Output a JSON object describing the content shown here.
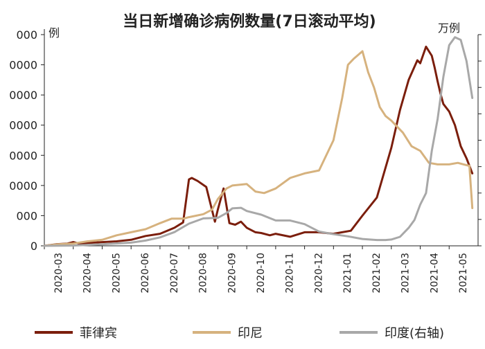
{
  "chart_data": {
    "type": "line",
    "title": "当日新增确诊病例数量(7日滚动平均)",
    "left_axis_unit": "例",
    "right_axis_unit": "万例",
    "left_axis": {
      "ylim": [
        0,
        14000
      ],
      "tick_labels_visible": [
        "000",
        "0000",
        "0000",
        "0000",
        "0000",
        "0000",
        "000",
        "0"
      ]
    },
    "right_axis": {
      "ylim": [
        0,
        40
      ]
    },
    "x_labels": [
      "2020-03",
      "2020-04",
      "2020-05",
      "2020-06",
      "2020-07",
      "2020-08",
      "2020-09",
      "2020-10",
      "2020-11",
      "2020-12",
      "2021-01",
      "2021-02",
      "2021-03",
      "2021-04",
      "2021-05"
    ],
    "colors": {
      "philippines": "#7b1e0c",
      "indonesia": "#d6b27e",
      "india": "#a8a8a8",
      "axis": "#222222"
    },
    "series": [
      {
        "name": "菲律宾",
        "key": "philippines",
        "axis": "left",
        "x": [
          0,
          0.4,
          0.8,
          1.0,
          1.2,
          1.6,
          2.0,
          2.5,
          3.0,
          3.5,
          4.0,
          4.5,
          4.8,
          5.0,
          5.1,
          5.3,
          5.6,
          5.9,
          6.0,
          6.2,
          6.4,
          6.6,
          6.8,
          7.0,
          7.3,
          7.5,
          7.8,
          8.0,
          8.5,
          9.0,
          9.5,
          10.0,
          10.3,
          10.6,
          11.0,
          11.5,
          12.0,
          12.3,
          12.6,
          12.9,
          13.0,
          13.2,
          13.4,
          13.5,
          13.6,
          13.7,
          13.8,
          14.0,
          14.2,
          14.4,
          14.6,
          14.8
        ],
        "values": [
          0,
          100,
          150,
          250,
          150,
          200,
          250,
          300,
          400,
          650,
          800,
          1200,
          1550,
          4400,
          4500,
          4300,
          3900,
          1600,
          2400,
          3800,
          1500,
          1400,
          1600,
          1200,
          900,
          850,
          700,
          800,
          600,
          900,
          900,
          800,
          900,
          1000,
          2000,
          3200,
          6500,
          9000,
          11000,
          12300,
          12100,
          13200,
          12600,
          11800,
          10900,
          10100,
          9400,
          8900,
          8000,
          6600,
          5800,
          4800
        ]
      },
      {
        "name": "印尼",
        "key": "indonesia",
        "axis": "left",
        "x": [
          0,
          0.5,
          1.0,
          1.5,
          2.0,
          2.5,
          3.0,
          3.5,
          4.0,
          4.4,
          4.8,
          5.0,
          5.5,
          5.8,
          6.0,
          6.3,
          6.5,
          7.0,
          7.3,
          7.6,
          8.0,
          8.5,
          9.0,
          9.5,
          10.0,
          10.3,
          10.5,
          10.7,
          11.0,
          11.2,
          11.4,
          11.6,
          11.8,
          12.0,
          12.4,
          12.7,
          13.0,
          13.3,
          13.6,
          14.0,
          14.3,
          14.5,
          14.7,
          14.8
        ],
        "values": [
          0,
          100,
          150,
          300,
          400,
          700,
          900,
          1100,
          1500,
          1800,
          1800,
          1900,
          2100,
          2400,
          3100,
          3800,
          4000,
          4100,
          3600,
          3500,
          3800,
          4500,
          4800,
          5000,
          7000,
          9800,
          12000,
          12400,
          12900,
          11500,
          10500,
          9200,
          8600,
          8300,
          7500,
          6600,
          6300,
          5500,
          5400,
          5400,
          5500,
          5400,
          5300,
          2500
        ]
      },
      {
        "name": "印度(右轴)",
        "key": "india",
        "axis": "right",
        "x": [
          0,
          1.0,
          2.0,
          3.0,
          3.5,
          4.0,
          4.5,
          5.0,
          5.5,
          6.0,
          6.3,
          6.5,
          6.8,
          7.0,
          7.5,
          8.0,
          8.5,
          9.0,
          9.5,
          10.0,
          10.5,
          11.0,
          11.5,
          11.8,
          12.0,
          12.3,
          12.6,
          12.8,
          13.0,
          13.2,
          13.4,
          13.6,
          13.8,
          14.0,
          14.2,
          14.4,
          14.6,
          14.8
        ],
        "values": [
          0,
          0.05,
          0.3,
          0.6,
          1.0,
          1.6,
          2.6,
          4.2,
          5.2,
          5.3,
          6.2,
          7.1,
          7.2,
          6.6,
          5.9,
          4.8,
          4.8,
          4.1,
          2.7,
          2.2,
          1.8,
          1.3,
          1.1,
          1.1,
          1.2,
          1.7,
          3.4,
          4.9,
          7.8,
          10.0,
          18.0,
          24.0,
          32.0,
          38.0,
          39.5,
          39.0,
          35.0,
          28.0
        ]
      }
    ],
    "legend_position": "bottom"
  }
}
